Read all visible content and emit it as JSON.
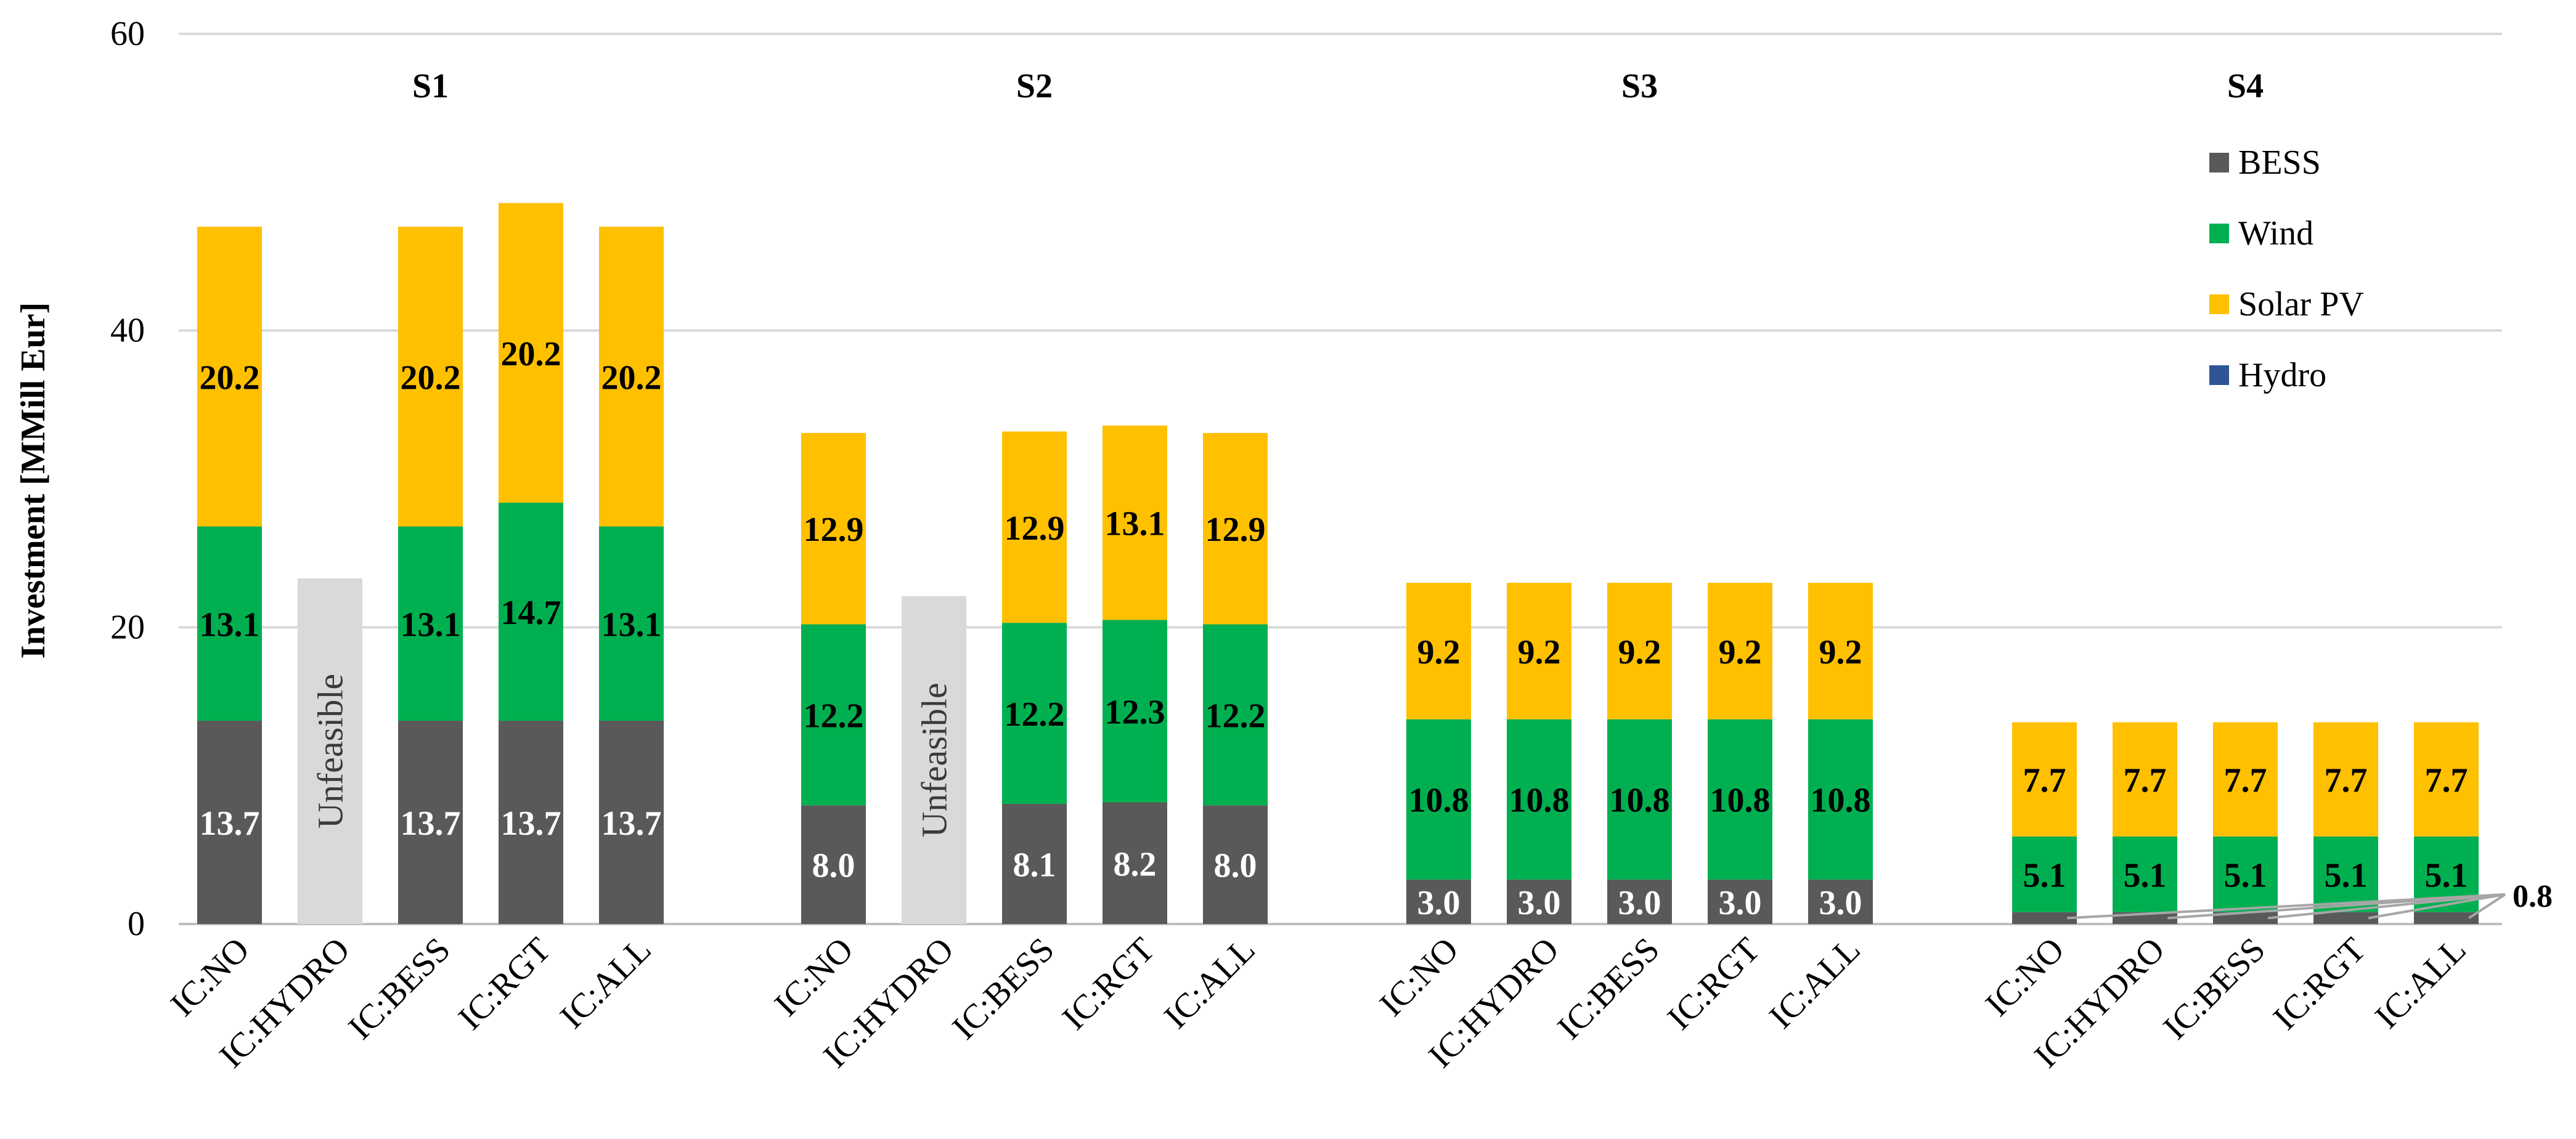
{
  "chart_data": {
    "type": "bar",
    "stacked": true,
    "title": "",
    "xlabel": "",
    "ylabel": "Investment [MMill Eur]",
    "ylim": [
      0,
      60
    ],
    "y_ticks": [
      "0",
      "20",
      "40",
      "60"
    ],
    "grid": true,
    "legend_position": "top-right",
    "colors": {
      "BESS": "#595959",
      "Wind": "#00B050",
      "Solar PV": "#FFC000",
      "Hydro": "#2F5597",
      "Unfeasible": "#D9D9D9",
      "grid": "#D9D9D9",
      "leader": "#A6A6A6"
    },
    "legend": [
      {
        "name": "BESS",
        "color": "#595959"
      },
      {
        "name": "Wind",
        "color": "#00B050"
      },
      {
        "name": "Solar PV",
        "color": "#FFC000"
      },
      {
        "name": "Hydro",
        "color": "#2F5597"
      }
    ],
    "groups": [
      {
        "name": "S1",
        "bars": [
          {
            "category": "IC:NO",
            "feasible": true,
            "BESS": 13.7,
            "Wind": 13.1,
            "Solar PV": 20.2,
            "Hydro": 0,
            "labels": {
              "BESS": "13.7",
              "Wind": "13.1",
              "Solar PV": "20.2"
            }
          },
          {
            "category": "IC:HYDRO",
            "feasible": false,
            "total": 23.3,
            "text": "Unfeasible"
          },
          {
            "category": "IC:BESS",
            "feasible": true,
            "BESS": 13.7,
            "Wind": 13.1,
            "Solar PV": 20.2,
            "Hydro": 0,
            "labels": {
              "BESS": "13.7",
              "Wind": "13.1",
              "Solar PV": "20.2"
            }
          },
          {
            "category": "IC:RGT",
            "feasible": true,
            "BESS": 13.7,
            "Wind": 14.7,
            "Solar PV": 20.2,
            "Hydro": 0,
            "labels": {
              "BESS": "13.7",
              "Wind": "14.7",
              "Solar PV": "20.2"
            }
          },
          {
            "category": "IC:ALL",
            "feasible": true,
            "BESS": 13.7,
            "Wind": 13.1,
            "Solar PV": 20.2,
            "Hydro": 0,
            "labels": {
              "BESS": "13.7",
              "Wind": "13.1",
              "Solar PV": "20.2"
            }
          }
        ]
      },
      {
        "name": "S2",
        "bars": [
          {
            "category": "IC:NO",
            "feasible": true,
            "BESS": 8.0,
            "Wind": 12.2,
            "Solar PV": 12.9,
            "Hydro": 0,
            "labels": {
              "BESS": "8.0",
              "Wind": "12.2",
              "Solar PV": "12.9"
            }
          },
          {
            "category": "IC:HYDRO",
            "feasible": false,
            "total": 22.1,
            "text": "Unfeasible"
          },
          {
            "category": "IC:BESS",
            "feasible": true,
            "BESS": 8.1,
            "Wind": 12.2,
            "Solar PV": 12.9,
            "Hydro": 0,
            "labels": {
              "BESS": "8.1",
              "Wind": "12.2",
              "Solar PV": "12.9"
            }
          },
          {
            "category": "IC:RGT",
            "feasible": true,
            "BESS": 8.2,
            "Wind": 12.3,
            "Solar PV": 13.1,
            "Hydro": 0,
            "labels": {
              "BESS": "8.2",
              "Wind": "12.3",
              "Solar PV": "13.1"
            }
          },
          {
            "category": "IC:ALL",
            "feasible": true,
            "BESS": 8.0,
            "Wind": 12.2,
            "Solar PV": 12.9,
            "Hydro": 0,
            "labels": {
              "BESS": "8.0",
              "Wind": "12.2",
              "Solar PV": "12.9"
            }
          }
        ]
      },
      {
        "name": "S3",
        "bars": [
          {
            "category": "IC:NO",
            "feasible": true,
            "BESS": 3.0,
            "Wind": 10.8,
            "Solar PV": 9.2,
            "Hydro": 0,
            "labels": {
              "BESS": "3.0",
              "Wind": "10.8",
              "Solar PV": "9.2"
            }
          },
          {
            "category": "IC:HYDRO",
            "feasible": true,
            "BESS": 3.0,
            "Wind": 10.8,
            "Solar PV": 9.2,
            "Hydro": 0,
            "labels": {
              "BESS": "3.0",
              "Wind": "10.8",
              "Solar PV": "9.2"
            }
          },
          {
            "category": "IC:BESS",
            "feasible": true,
            "BESS": 3.0,
            "Wind": 10.8,
            "Solar PV": 9.2,
            "Hydro": 0,
            "labels": {
              "BESS": "3.0",
              "Wind": "10.8",
              "Solar PV": "9.2"
            }
          },
          {
            "category": "IC:RGT",
            "feasible": true,
            "BESS": 3.0,
            "Wind": 10.8,
            "Solar PV": 9.2,
            "Hydro": 0,
            "labels": {
              "BESS": "3.0",
              "Wind": "10.8",
              "Solar PV": "9.2"
            }
          },
          {
            "category": "IC:ALL",
            "feasible": true,
            "BESS": 3.0,
            "Wind": 10.8,
            "Solar PV": 9.2,
            "Hydro": 0,
            "labels": {
              "BESS": "3.0",
              "Wind": "10.8",
              "Solar PV": "9.2"
            }
          }
        ]
      },
      {
        "name": "S4",
        "bars": [
          {
            "category": "IC:NO",
            "feasible": true,
            "BESS": 0.8,
            "Wind": 5.1,
            "Solar PV": 7.7,
            "Hydro": 0,
            "labels": {
              "Wind": "5.1",
              "Solar PV": "7.7"
            }
          },
          {
            "category": "IC:HYDRO",
            "feasible": true,
            "BESS": 0.8,
            "Wind": 5.1,
            "Solar PV": 7.7,
            "Hydro": 0,
            "labels": {
              "Wind": "5.1",
              "Solar PV": "7.7"
            }
          },
          {
            "category": "IC:BESS",
            "feasible": true,
            "BESS": 0.8,
            "Wind": 5.1,
            "Solar PV": 7.7,
            "Hydro": 0,
            "labels": {
              "Wind": "5.1",
              "Solar PV": "7.7"
            }
          },
          {
            "category": "IC:RGT",
            "feasible": true,
            "BESS": 0.8,
            "Wind": 5.1,
            "Solar PV": 7.7,
            "Hydro": 0,
            "labels": {
              "Wind": "5.1",
              "Solar PV": "7.7"
            }
          },
          {
            "category": "IC:ALL",
            "feasible": true,
            "BESS": 0.8,
            "Wind": 5.1,
            "Solar PV": 7.7,
            "Hydro": 0,
            "labels": {
              "Wind": "5.1",
              "Solar PV": "7.7"
            }
          }
        ],
        "callout_label": "0.8"
      }
    ]
  }
}
